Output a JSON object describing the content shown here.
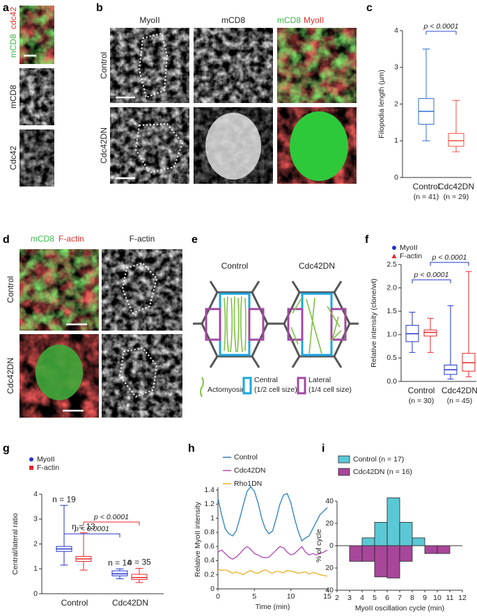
{
  "a": {
    "label": "a",
    "top_label": [
      "mCD8",
      "cdc42"
    ],
    "middle_label": "mCD8",
    "bottom_label": "Cdc42"
  },
  "b": {
    "label": "b",
    "headers": [
      "MyoII",
      "mCD8"
    ],
    "merge_header": [
      "mCD8",
      "MyoII"
    ],
    "rows": [
      "Control",
      "Cdc42DN"
    ]
  },
  "c": {
    "label": "c",
    "chart": {
      "type": "box",
      "ylabel": "Filopodia length (µm)",
      "ylim": [
        0,
        4
      ],
      "yticks": [
        0,
        1,
        2,
        3,
        4
      ],
      "categories": [
        "Control",
        "Cdc42DN"
      ],
      "category_notes": [
        "(n = 41)",
        "(n = 29)"
      ],
      "series": [
        {
          "color": [
            "#2f6fd6",
            "#f0503c"
          ],
          "values": [
            {
              "min": 1.0,
              "q1": 1.45,
              "median": 1.8,
              "q3": 2.15,
              "max": 3.5
            },
            {
              "min": 0.7,
              "q1": 0.85,
              "median": 1.0,
              "q3": 1.2,
              "max": 2.1
            }
          ]
        }
      ],
      "annotations": [
        {
          "text": "p < 0.0001",
          "color": "#2f4fd0"
        }
      ]
    }
  },
  "d": {
    "label": "d",
    "merge_header": [
      "mCD8",
      "F-actin"
    ],
    "header": "F-actin",
    "rows": [
      "Control",
      "Cdc42DN"
    ]
  },
  "e": {
    "label": "e",
    "headers": [
      "Control",
      "Cdc42DN"
    ],
    "legend": {
      "actomyosin": "Actomyosin",
      "central": [
        "Central",
        "(1/2 cell size)"
      ],
      "lateral": [
        "Lateral",
        "(1/4 cell size)"
      ]
    }
  },
  "f": {
    "label": "f",
    "chart": {
      "type": "box",
      "ylabel": "Relative intensity (clone/wt)",
      "ylim": [
        0,
        2.5
      ],
      "yticks": [
        {
          "value": 0,
          "label": "0.0"
        },
        0.5,
        {
          "value": 1,
          "label": "1.0"
        },
        1.5,
        {
          "value": 2,
          "label": "2.0"
        },
        2.5
      ],
      "categories": [
        "Control",
        "Cdc42DN"
      ],
      "category_notes": [
        "(n = 30)",
        "(n = 45)"
      ],
      "series": [
        {
          "name": "MyoII",
          "color": "#2233cc",
          "marker": "circle",
          "values": [
            {
              "min": 0.62,
              "q1": 0.85,
              "median": 1.02,
              "q3": 1.2,
              "max": 1.48
            },
            {
              "min": 0.05,
              "q1": 0.15,
              "median": 0.25,
              "q3": 0.35,
              "max": 1.62
            }
          ]
        },
        {
          "name": "F-actin",
          "color": "#e8262a",
          "marker": "triangle",
          "values": [
            {
              "min": 0.62,
              "q1": 0.97,
              "median": 1.05,
              "q3": 1.1,
              "max": 1.35
            },
            {
              "min": 0.1,
              "q1": 0.22,
              "median": 0.4,
              "q3": 0.6,
              "max": 2.35
            }
          ]
        }
      ],
      "annotations": [
        {
          "text": "p < 0.0001",
          "color": "#2233cc"
        },
        {
          "text": "p < 0.0001",
          "color": "#2233cc"
        }
      ]
    }
  },
  "g": {
    "label": "g",
    "chart": {
      "type": "box",
      "ylabel": "Central/lateral ratio",
      "ylim": [
        0,
        4
      ],
      "yticks": [
        0,
        1,
        2,
        3,
        4
      ],
      "categories": [
        "Control",
        "Cdc42DN"
      ],
      "series": [
        {
          "name": "MyoII",
          "color": "#2233cc",
          "marker": "circle",
          "n_labels": [
            "n = 19",
            "n = 14"
          ],
          "values": [
            {
              "min": 1.15,
              "q1": 1.7,
              "median": 1.8,
              "q3": 1.9,
              "max": 3.55
            },
            {
              "min": 0.6,
              "q1": 0.72,
              "median": 0.8,
              "q3": 0.92,
              "max": 1.0
            }
          ]
        },
        {
          "name": "F-actin",
          "color": "#e8262a",
          "marker": "square",
          "n_labels": [
            "n = 13",
            "n = 35"
          ],
          "values": [
            {
              "min": 0.95,
              "q1": 1.3,
              "median": 1.4,
              "q3": 1.5,
              "max": 2.45
            },
            {
              "min": 0.45,
              "q1": 0.57,
              "median": 0.65,
              "q3": 0.78,
              "max": 1.02
            }
          ]
        }
      ],
      "annotations": [
        {
          "text": "p < 0.0001",
          "color": "#2233cc"
        },
        {
          "text": "p < 0.0001",
          "color": "#e8262a"
        }
      ]
    }
  },
  "h": {
    "label": "h",
    "chart": {
      "type": "line",
      "xlabel": "Time (min)",
      "ylabel": "Relative MyoII intensity",
      "xlim": [
        0,
        15
      ],
      "ylim": [
        0,
        1.4
      ],
      "xticks": [
        0,
        5,
        10,
        15
      ],
      "yticks": [
        0,
        0.2,
        0.4,
        0.6,
        0.8,
        1,
        1.2,
        1.4
      ],
      "x": [
        0,
        0.5,
        1,
        1.5,
        2,
        2.5,
        3,
        3.5,
        4,
        4.5,
        5,
        5.5,
        6,
        6.5,
        7,
        7.5,
        8,
        8.5,
        9,
        9.5,
        10,
        10.5,
        11,
        11.5,
        12,
        12.5,
        13,
        13.5,
        14,
        14.5,
        15
      ],
      "series": [
        {
          "name": "Control",
          "color": "#2a7fc1",
          "values": [
            1.28,
            1.05,
            0.85,
            0.78,
            0.75,
            0.82,
            1.0,
            1.2,
            1.38,
            1.45,
            1.38,
            1.22,
            1.0,
            0.85,
            0.78,
            0.82,
            1.0,
            1.2,
            1.33,
            1.35,
            1.22,
            1.0,
            0.82,
            0.68,
            0.72,
            0.75,
            0.85,
            0.95,
            1.05,
            1.1,
            1.15
          ]
        },
        {
          "name": "Cdc42DN",
          "color": "#b543b5",
          "values": [
            0.52,
            0.55,
            0.5,
            0.45,
            0.42,
            0.45,
            0.5,
            0.56,
            0.6,
            0.56,
            0.5,
            0.48,
            0.45,
            0.44,
            0.45,
            0.5,
            0.55,
            0.6,
            0.58,
            0.52,
            0.48,
            0.5,
            0.55,
            0.6,
            0.52,
            0.48,
            0.5,
            0.48,
            0.5,
            0.52,
            0.55
          ]
        },
        {
          "name": "Rho1DN",
          "color": "#e8b020",
          "values": [
            0.28,
            0.26,
            0.27,
            0.25,
            0.22,
            0.24,
            0.22,
            0.2,
            0.24,
            0.26,
            0.23,
            0.22,
            0.25,
            0.27,
            0.24,
            0.22,
            0.25,
            0.24,
            0.23,
            0.26,
            0.25,
            0.24,
            0.22,
            0.23,
            0.24,
            0.21,
            0.23,
            0.22,
            0.2,
            0.19,
            0.18
          ]
        }
      ]
    }
  },
  "i": {
    "label": "i",
    "chart": {
      "type": "histogram",
      "xlabel": "MyoII oscillation cycle (min)",
      "ylabel": "% of cycle",
      "bins": [
        2,
        3,
        4,
        5,
        6,
        7,
        8,
        9,
        10,
        11,
        12
      ],
      "xlim": [
        2,
        12
      ],
      "xticks": [
        2,
        3,
        4,
        5,
        6,
        7,
        8,
        9,
        10,
        11,
        12
      ],
      "ylim": [
        -40,
        40
      ],
      "yticks": [
        {
          "value": -40,
          "label": "40"
        },
        {
          "value": -20,
          "label": "20"
        },
        0,
        20,
        40
      ],
      "series": [
        {
          "name": "Control (n = 17)",
          "color": "#5bc8d6",
          "values": [
            0,
            0,
            7,
            21,
            43,
            21,
            7,
            0,
            0,
            0
          ]
        },
        {
          "name": "Cdc42DN (n = 16)",
          "color": "#a8479a",
          "values": [
            0,
            -14,
            -14,
            -28,
            -29,
            -14,
            0,
            -7,
            -7,
            0
          ]
        }
      ]
    }
  }
}
